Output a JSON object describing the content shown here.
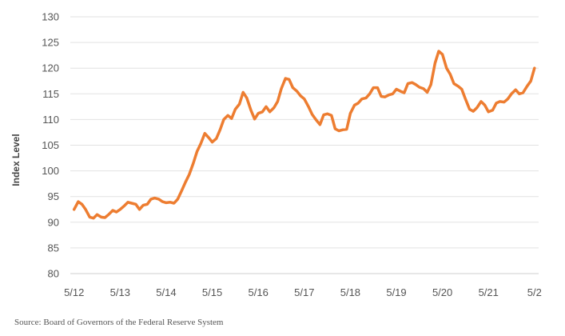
{
  "chart_data": {
    "type": "line",
    "title": "",
    "xlabel": "",
    "ylabel": "Index Level",
    "ylim": [
      80,
      130
    ],
    "yticks": [
      80,
      85,
      90,
      95,
      100,
      105,
      110,
      115,
      120,
      125,
      130
    ],
    "xticks": [
      {
        "label": "5/12",
        "x": 2012.33
      },
      {
        "label": "5/13",
        "x": 2013.33
      },
      {
        "label": "5/14",
        "x": 2014.33
      },
      {
        "label": "5/15",
        "x": 2015.33
      },
      {
        "label": "5/16",
        "x": 2016.33
      },
      {
        "label": "5/17",
        "x": 2017.33
      },
      {
        "label": "5/18",
        "x": 2018.33
      },
      {
        "label": "5/19",
        "x": 2019.33
      },
      {
        "label": "5/20",
        "x": 2020.33
      },
      {
        "label": "5/21",
        "x": 2021.33
      },
      {
        "label": "5/2",
        "x": 2022.33
      }
    ],
    "xlim": [
      2012.3,
      2022.35
    ],
    "grid": true,
    "line_color": "#ED7D31",
    "series": [
      {
        "x": [
          2012.33,
          2012.42,
          2012.5,
          2012.58,
          2012.67,
          2012.75,
          2012.83,
          2012.92,
          2013.0,
          2013.08,
          2013.17,
          2013.25,
          2013.33,
          2013.42,
          2013.5,
          2013.58,
          2013.67,
          2013.75,
          2013.83,
          2013.92,
          2014.0,
          2014.08,
          2014.17,
          2014.25,
          2014.33,
          2014.42,
          2014.5,
          2014.58,
          2014.67,
          2014.75,
          2014.83,
          2014.92,
          2015.0,
          2015.08,
          2015.17,
          2015.25,
          2015.33,
          2015.42,
          2015.5,
          2015.58,
          2015.67,
          2015.75,
          2015.83,
          2015.92,
          2016.0,
          2016.08,
          2016.17,
          2016.25,
          2016.33,
          2016.42,
          2016.5,
          2016.58,
          2016.67,
          2016.75,
          2016.83,
          2016.92,
          2017.0,
          2017.08,
          2017.17,
          2017.25,
          2017.33,
          2017.42,
          2017.5,
          2017.58,
          2017.67,
          2017.75,
          2017.83,
          2017.92,
          2018.0,
          2018.08,
          2018.17,
          2018.25,
          2018.33,
          2018.42,
          2018.5,
          2018.58,
          2018.67,
          2018.75,
          2018.83,
          2018.92,
          2019.0,
          2019.08,
          2019.17,
          2019.25,
          2019.33,
          2019.42,
          2019.5,
          2019.58,
          2019.67,
          2019.75,
          2019.83,
          2019.92,
          2020.0,
          2020.08,
          2020.17,
          2020.25,
          2020.33,
          2020.42,
          2020.5,
          2020.58,
          2020.67,
          2020.75,
          2020.83,
          2020.92,
          2021.0,
          2021.08,
          2021.17,
          2021.25,
          2021.33,
          2021.42,
          2021.5,
          2021.58,
          2021.67,
          2021.75,
          2021.83,
          2021.92,
          2022.0,
          2022.08,
          2022.17,
          2022.25,
          2022.33
        ],
        "values": [
          92.5,
          94.0,
          93.5,
          92.5,
          91.0,
          90.8,
          91.5,
          91.0,
          90.9,
          91.5,
          92.3,
          92.0,
          92.5,
          93.2,
          93.9,
          93.7,
          93.5,
          92.5,
          93.3,
          93.5,
          94.5,
          94.7,
          94.5,
          94.0,
          93.8,
          93.9,
          93.7,
          94.5,
          96.2,
          97.8,
          99.3,
          101.5,
          103.8,
          105.3,
          107.3,
          106.5,
          105.6,
          106.3,
          108.0,
          110.0,
          110.8,
          110.2,
          112.0,
          113.0,
          115.3,
          114.2,
          111.8,
          110.1,
          111.2,
          111.5,
          112.5,
          111.5,
          112.3,
          113.5,
          116.0,
          118.0,
          117.8,
          116.2,
          115.5,
          114.6,
          114.0,
          112.5,
          111.0,
          110.0,
          109.0,
          110.9,
          111.1,
          110.8,
          108.2,
          107.8,
          108.0,
          108.1,
          111.2,
          112.8,
          113.2,
          114.0,
          114.2,
          115.0,
          116.2,
          116.2,
          114.5,
          114.4,
          114.8,
          115.0,
          115.9,
          115.5,
          115.2,
          117.0,
          117.2,
          116.8,
          116.3,
          116.0,
          115.3,
          116.8,
          121.0,
          123.3,
          122.7,
          120.0,
          118.8,
          117.0,
          116.5,
          115.9,
          114.0,
          112.0,
          111.6,
          112.3,
          113.5,
          112.8,
          111.5,
          111.8,
          113.2,
          113.5,
          113.4,
          114.0,
          115.0,
          115.8,
          115.0,
          115.2,
          116.5,
          117.5,
          120.0
        ]
      }
    ]
  },
  "source_note": "Source: Board of Governors of the Federal Reserve System"
}
